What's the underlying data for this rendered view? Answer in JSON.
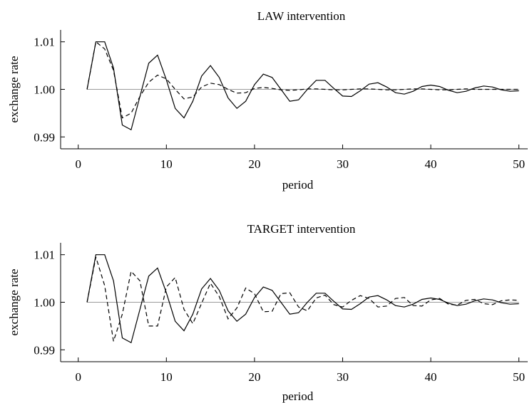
{
  "chart_data": [
    {
      "type": "line",
      "title": "LAW intervention",
      "xlabel": "period",
      "ylabel": "exchange rate",
      "xlim": [
        -2,
        51
      ],
      "ylim": [
        0.9875,
        1.0125
      ],
      "xticks": [
        0,
        10,
        20,
        30,
        40,
        50
      ],
      "xtick_labels": [
        "0",
        "10",
        "20",
        "30",
        "40",
        "50"
      ],
      "yticks": [
        0.99,
        1.0,
        1.01
      ],
      "ytick_labels": [
        "0.99",
        "1.00",
        "1.01"
      ],
      "reference_line": 1.0,
      "grid": false,
      "legend": "none",
      "series": [
        {
          "style": "solid",
          "x": [
            1,
            2,
            3,
            4,
            5,
            6,
            7,
            8,
            9,
            10,
            11,
            12,
            13,
            14,
            15,
            16,
            17,
            18,
            19,
            20,
            21,
            22,
            23,
            24,
            25,
            26,
            27,
            28,
            29,
            30,
            31,
            32,
            33,
            34,
            35,
            36,
            37,
            38,
            39,
            40,
            41,
            42,
            43,
            44,
            45,
            46,
            47,
            48,
            49,
            50
          ],
          "values": [
            1.0,
            1.01,
            1.01,
            1.0045,
            0.9925,
            0.9915,
            0.9985,
            1.0055,
            1.0072,
            1.002,
            0.996,
            0.994,
            0.9975,
            1.0028,
            1.005,
            1.0025,
            0.9982,
            0.996,
            0.9975,
            1.001,
            1.0032,
            1.0025,
            1.0,
            0.9975,
            0.9978,
            1.0,
            1.0019,
            1.0019,
            1.0002,
            0.9986,
            0.9985,
            0.9997,
            1.0011,
            1.0014,
            1.0005,
            0.9993,
            0.999,
            0.9996,
            1.0006,
            1.0009,
            1.0006,
            0.9998,
            0.9993,
            0.9996,
            1.0003,
            1.0007,
            1.0005,
            0.9999,
            0.9996,
            0.9997
          ]
        },
        {
          "style": "dashed",
          "x": [
            1,
            2,
            3,
            4,
            5,
            6,
            7,
            8,
            9,
            10,
            11,
            12,
            13,
            14,
            15,
            16,
            17,
            18,
            19,
            20,
            21,
            22,
            23,
            24,
            25,
            26,
            27,
            28,
            29,
            30,
            31,
            32,
            33,
            34,
            35,
            36,
            37,
            38,
            39,
            40,
            41,
            42,
            43,
            44,
            45,
            46,
            47,
            48,
            49,
            50
          ],
          "values": [
            1.0,
            1.01,
            1.0085,
            1.004,
            0.994,
            0.995,
            0.9985,
            1.0015,
            1.003,
            1.0022,
            1.0,
            0.998,
            0.9984,
            1.0005,
            1.0013,
            1.001,
            1.0,
            0.9992,
            0.9993,
            1.0002,
            1.0004,
            1.0002,
            0.9999,
            0.9998,
            0.9999,
            1.0001,
            1.0001,
            1.0,
            0.9999,
            0.9999,
            1.0,
            1.0001,
            1.0001,
            1.0,
            0.9999,
            0.9999,
            1.0,
            1.0001,
            1.0001,
            1.0,
            0.9999,
            0.9999,
            1.0,
            1.0001,
            1.0,
            1.0,
            1.0,
            1.0,
            1.0,
            1.0
          ]
        }
      ]
    },
    {
      "type": "line",
      "title": "TARGET intervention",
      "xlabel": "period",
      "ylabel": "exchange rate",
      "xlim": [
        -2,
        51
      ],
      "ylim": [
        0.9875,
        1.0125
      ],
      "xticks": [
        0,
        10,
        20,
        30,
        40,
        50
      ],
      "xtick_labels": [
        "0",
        "10",
        "20",
        "30",
        "40",
        "50"
      ],
      "yticks": [
        0.99,
        1.0,
        1.01
      ],
      "ytick_labels": [
        "0.99",
        "1.00",
        "1.01"
      ],
      "reference_line": 1.0,
      "grid": false,
      "legend": "none",
      "series": [
        {
          "style": "solid",
          "x": [
            1,
            2,
            3,
            4,
            5,
            6,
            7,
            8,
            9,
            10,
            11,
            12,
            13,
            14,
            15,
            16,
            17,
            18,
            19,
            20,
            21,
            22,
            23,
            24,
            25,
            26,
            27,
            28,
            29,
            30,
            31,
            32,
            33,
            34,
            35,
            36,
            37,
            38,
            39,
            40,
            41,
            42,
            43,
            44,
            45,
            46,
            47,
            48,
            49,
            50
          ],
          "values": [
            1.0,
            1.01,
            1.01,
            1.0045,
            0.9925,
            0.9915,
            0.9985,
            1.0055,
            1.0072,
            1.002,
            0.996,
            0.994,
            0.9975,
            1.0028,
            1.005,
            1.0025,
            0.9982,
            0.996,
            0.9975,
            1.001,
            1.0032,
            1.0025,
            1.0,
            0.9975,
            0.9978,
            1.0,
            1.0019,
            1.0019,
            1.0002,
            0.9986,
            0.9985,
            0.9997,
            1.0011,
            1.0014,
            1.0005,
            0.9993,
            0.999,
            0.9996,
            1.0006,
            1.0009,
            1.0006,
            0.9998,
            0.9993,
            0.9996,
            1.0003,
            1.0007,
            1.0005,
            0.9999,
            0.9996,
            0.9997
          ]
        },
        {
          "style": "dashed",
          "x": [
            1,
            2,
            3,
            4,
            5,
            6,
            7,
            8,
            9,
            10,
            11,
            12,
            13,
            14,
            15,
            16,
            17,
            18,
            19,
            20,
            21,
            22,
            23,
            24,
            25,
            26,
            27,
            28,
            29,
            30,
            31,
            32,
            33,
            34,
            35,
            36,
            37,
            38,
            39,
            40,
            41,
            42,
            43,
            44,
            45,
            46,
            47,
            48,
            49,
            50
          ],
          "values": [
            1.0,
            1.0095,
            1.0035,
            0.9918,
            0.9975,
            1.0065,
            1.0045,
            0.995,
            0.995,
            1.0032,
            1.0052,
            0.9985,
            0.9955,
            0.9998,
            1.004,
            1.0012,
            0.9965,
            0.9988,
            1.003,
            1.0018,
            0.998,
            0.9981,
            1.0018,
            1.002,
            0.999,
            0.9982,
            1.0009,
            1.0015,
            0.9995,
            0.999,
            1.0004,
            1.0014,
            1.0008,
            0.999,
            0.9992,
            1.0008,
            1.001,
            0.9993,
            0.9992,
            1.0005,
            1.0008,
            0.9996,
            0.9994,
            1.0004,
            1.0006,
            0.9997,
            0.9995,
            1.0003,
            1.0005,
            1.0004
          ]
        }
      ]
    }
  ]
}
